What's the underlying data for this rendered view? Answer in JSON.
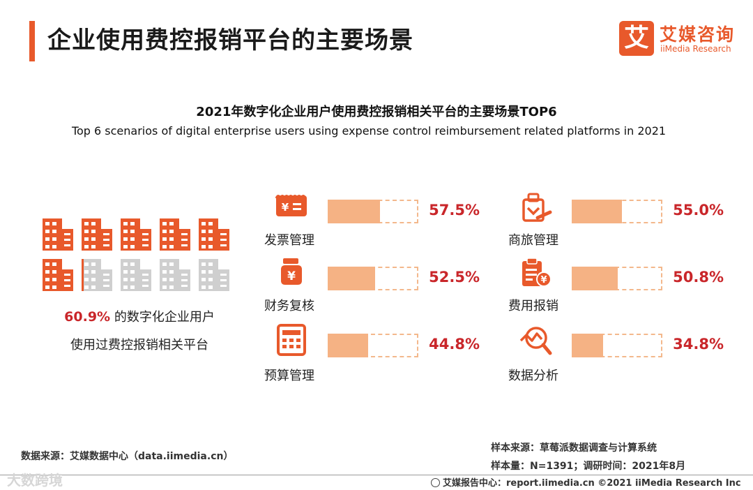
{
  "header": {
    "title": "企业使用费控报销平台的主要场景",
    "logo_mark": "艾",
    "logo_cn": "艾媒咨询",
    "logo_en": "iiMedia Research"
  },
  "colors": {
    "accent": "#e8592b",
    "bar_fill": "#f5b284",
    "bar_border": "#f3b88c",
    "value": "#c9262a",
    "inactive": "#cfcfcf"
  },
  "summary": {
    "percent_text": "60.9%",
    "line1_suffix": " 的数字化企业用户",
    "line2": "使用过费控报销相关平台",
    "total_buildings": 10,
    "filled_fraction_pct": 60.9
  },
  "chart_data": {
    "type": "bar",
    "title": "2021年数字化企业用户使用费控报销相关平台的主要场景TOP6",
    "subtitle": "Top 6 scenarios of digital enterprise users using expense control reimbursement related platforms in 2021",
    "categories": [
      "发票管理",
      "商旅管理",
      "财务复核",
      "费用报销",
      "预算管理",
      "数据分析"
    ],
    "values": [
      57.5,
      55.0,
      52.5,
      50.8,
      44.8,
      34.8
    ],
    "value_labels": [
      "57.5%",
      "55.0%",
      "52.5%",
      "50.8%",
      "44.8%",
      "34.8%"
    ],
    "icons": [
      "invoice-icon",
      "business-travel-icon",
      "money-bag-icon",
      "expense-clipboard-icon",
      "calculator-icon",
      "data-analysis-icon"
    ],
    "ylim": [
      0,
      100
    ],
    "unit": "%"
  },
  "footer": {
    "source": "数据来源：艾媒数据中心（data.iimedia.cn）",
    "sample_source": "样本来源：草莓派数据调查与计算系统",
    "sample_size": "样本量：N=1391；调研时间：2021年8月",
    "report": "艾媒报告中心：report.iimedia.cn  ©2021  iiMedia Research  Inc",
    "watermark": "大数跨境"
  }
}
